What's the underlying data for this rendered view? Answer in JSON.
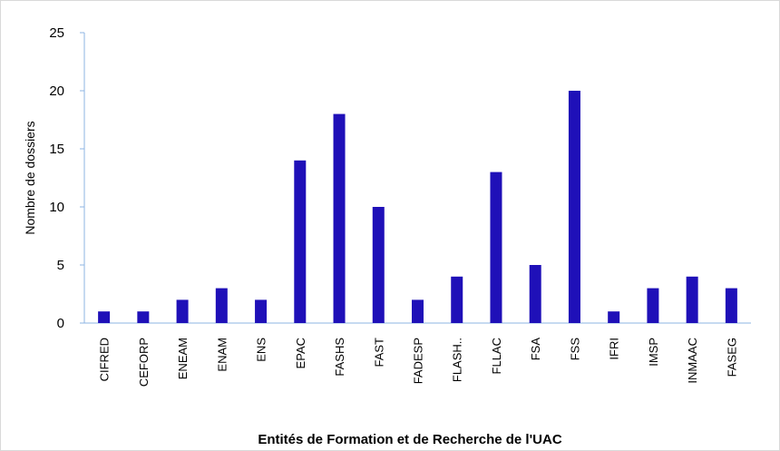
{
  "chart_data": {
    "type": "bar",
    "x_label": "Entités de Formation et de Recherche de l'UAC",
    "y_label": "Nombre de dossiers",
    "categories": [
      "CIFRED",
      "CEFORP",
      "ENEAM",
      "ENAM",
      "ENS",
      "EPAC",
      "FASHS",
      "FAST",
      "FADESP",
      "FLASH..",
      "FLLAC",
      "FSA",
      "FSS",
      "IFRI",
      "IMSP",
      "INMAAC",
      "FASEG"
    ],
    "values": [
      1,
      1,
      2,
      3,
      2,
      14,
      18,
      10,
      2,
      4,
      13,
      5,
      20,
      1,
      3,
      4,
      3
    ],
    "color": "#1f10b8",
    "ylim": [
      0,
      25
    ],
    "yticks": [
      0,
      5,
      10,
      15,
      20,
      25
    ],
    "grid": false
  }
}
